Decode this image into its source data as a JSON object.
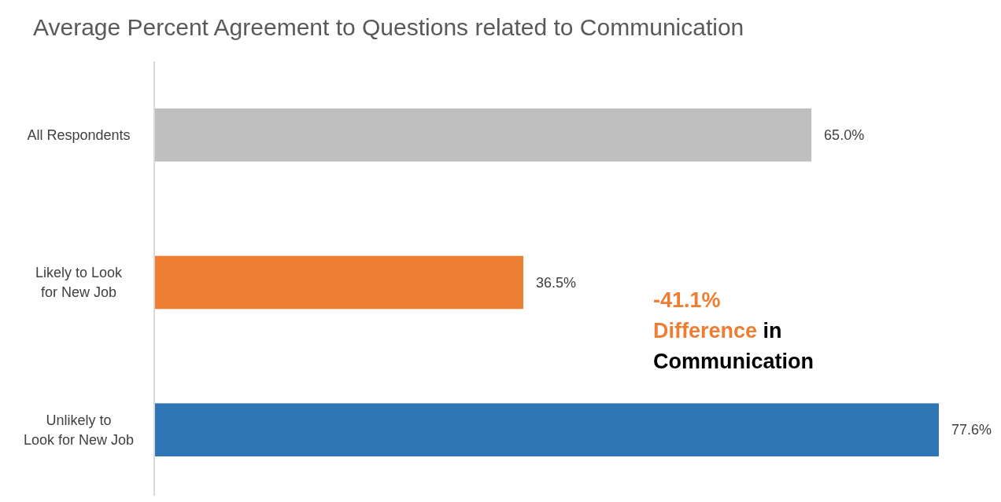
{
  "chart_data": {
    "type": "bar",
    "orientation": "horizontal",
    "title": "Average Percent Agreement to Questions related to Communication",
    "categories": [
      "All Respondents",
      "Likely to Look\nfor New Job",
      "Unlikely to\nLook for New Job"
    ],
    "values": [
      65.0,
      36.5,
      77.6
    ],
    "colors": [
      "#bfbfbf",
      "#ed7d31",
      "#2e75b6"
    ],
    "value_labels": [
      "65.0%",
      "36.5%",
      "77.6%"
    ],
    "annotations": [
      "-41.1% Difference in Communication"
    ]
  }
}
